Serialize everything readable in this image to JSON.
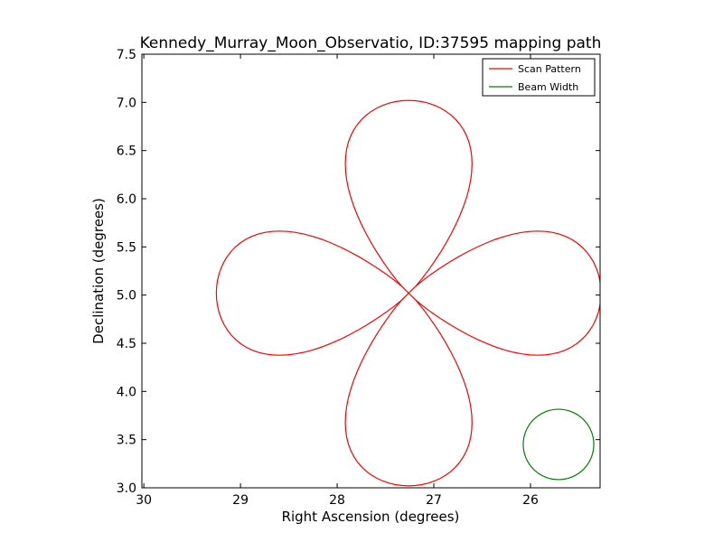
{
  "chart_data": {
    "type": "line",
    "title": "Kennedy_Murray_Moon_Observatio, ID:37595 mapping path",
    "xlabel": "Right Ascension (degrees)",
    "ylabel": "Declination (degrees)",
    "xlim": [
      30.02,
      25.28
    ],
    "ylim": [
      3.0,
      7.5
    ],
    "x_axis_inverted": true,
    "xticks": [
      30,
      29,
      28,
      27,
      26
    ],
    "xtick_labels": [
      "30",
      "29",
      "28",
      "27",
      "26"
    ],
    "yticks": [
      3.0,
      3.5,
      4.0,
      4.5,
      5.0,
      5.5,
      6.0,
      6.5,
      7.0,
      7.5
    ],
    "ytick_labels": [
      "3.0",
      "3.5",
      "4.0",
      "4.5",
      "5.0",
      "5.5",
      "6.0",
      "6.5",
      "7.0",
      "7.5"
    ],
    "grid": false,
    "legend_position": "top-right",
    "series": [
      {
        "name": "Scan Pattern",
        "color": "#ff0000",
        "shape": "four-lobed rose",
        "center": [
          27.26,
          5.02
        ],
        "lobe_extent_ra": 1.99,
        "lobe_extent_dec": 2.0,
        "lobe_half_width_ra": 0.57,
        "lobe_half_width_dec": 0.56
      },
      {
        "name": "Beam Width",
        "color": "#008000",
        "shape": "circle",
        "center": [
          25.71,
          3.45
        ],
        "radius": 0.365
      }
    ]
  }
}
